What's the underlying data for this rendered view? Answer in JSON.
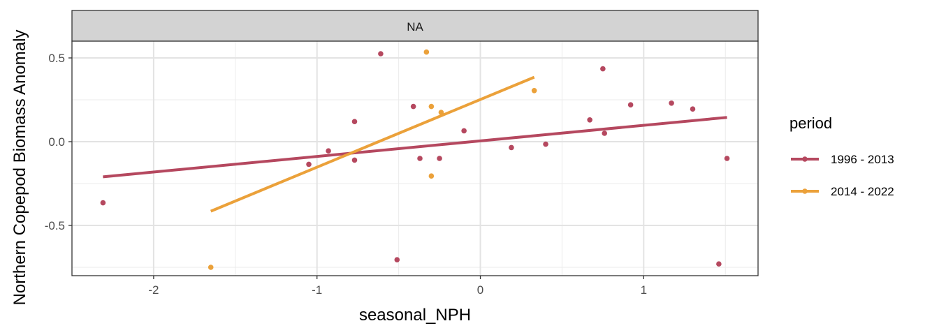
{
  "chart_data": {
    "type": "scatter",
    "facet_label": "NA",
    "xlabel": "seasonal_NPH",
    "ylabel": "Northern Copepod Biomass Anomaly",
    "xlim": [
      -2.5,
      1.7
    ],
    "ylim": [
      -0.8,
      0.6
    ],
    "x_ticks": [
      -2,
      -1,
      0,
      1
    ],
    "x_tick_labels": [
      "-2",
      "-1",
      "0",
      "1"
    ],
    "y_ticks": [
      -0.5,
      0.0,
      0.5
    ],
    "y_tick_labels": [
      "-0.5",
      "0.0",
      "0.5"
    ],
    "grid": true,
    "legend": {
      "title": "period",
      "placement": "right"
    },
    "series": [
      {
        "name": "1996 - 2013",
        "color": "#B5485F",
        "points": [
          {
            "x": -2.31,
            "y": -0.365
          },
          {
            "x": -1.05,
            "y": -0.135
          },
          {
            "x": -0.93,
            "y": -0.055
          },
          {
            "x": -0.77,
            "y": 0.12
          },
          {
            "x": -0.77,
            "y": -0.11
          },
          {
            "x": -0.61,
            "y": 0.525
          },
          {
            "x": -0.51,
            "y": -0.705
          },
          {
            "x": -0.41,
            "y": 0.21
          },
          {
            "x": -0.37,
            "y": -0.1
          },
          {
            "x": -0.25,
            "y": -0.1
          },
          {
            "x": -0.1,
            "y": 0.065
          },
          {
            "x": 0.19,
            "y": -0.035
          },
          {
            "x": 0.4,
            "y": -0.015
          },
          {
            "x": 0.67,
            "y": 0.13
          },
          {
            "x": 0.75,
            "y": 0.435
          },
          {
            "x": 0.76,
            "y": 0.05
          },
          {
            "x": 0.92,
            "y": 0.22
          },
          {
            "x": 1.17,
            "y": 0.23
          },
          {
            "x": 1.3,
            "y": 0.195
          },
          {
            "x": 1.46,
            "y": -0.73
          },
          {
            "x": 1.51,
            "y": -0.1
          }
        ],
        "fit": {
          "x": [
            -2.31,
            1.51
          ],
          "y": [
            -0.21,
            0.145
          ]
        }
      },
      {
        "name": "2014 - 2022",
        "color": "#EBA13A",
        "points": [
          {
            "x": -1.65,
            "y": -0.75
          },
          {
            "x": -0.33,
            "y": 0.535
          },
          {
            "x": -0.3,
            "y": 0.21
          },
          {
            "x": -0.3,
            "y": -0.205
          },
          {
            "x": -0.24,
            "y": 0.175
          },
          {
            "x": 0.33,
            "y": 0.305
          }
        ],
        "fit": {
          "x": [
            -1.65,
            0.33
          ],
          "y": [
            -0.415,
            0.385
          ]
        }
      }
    ]
  }
}
